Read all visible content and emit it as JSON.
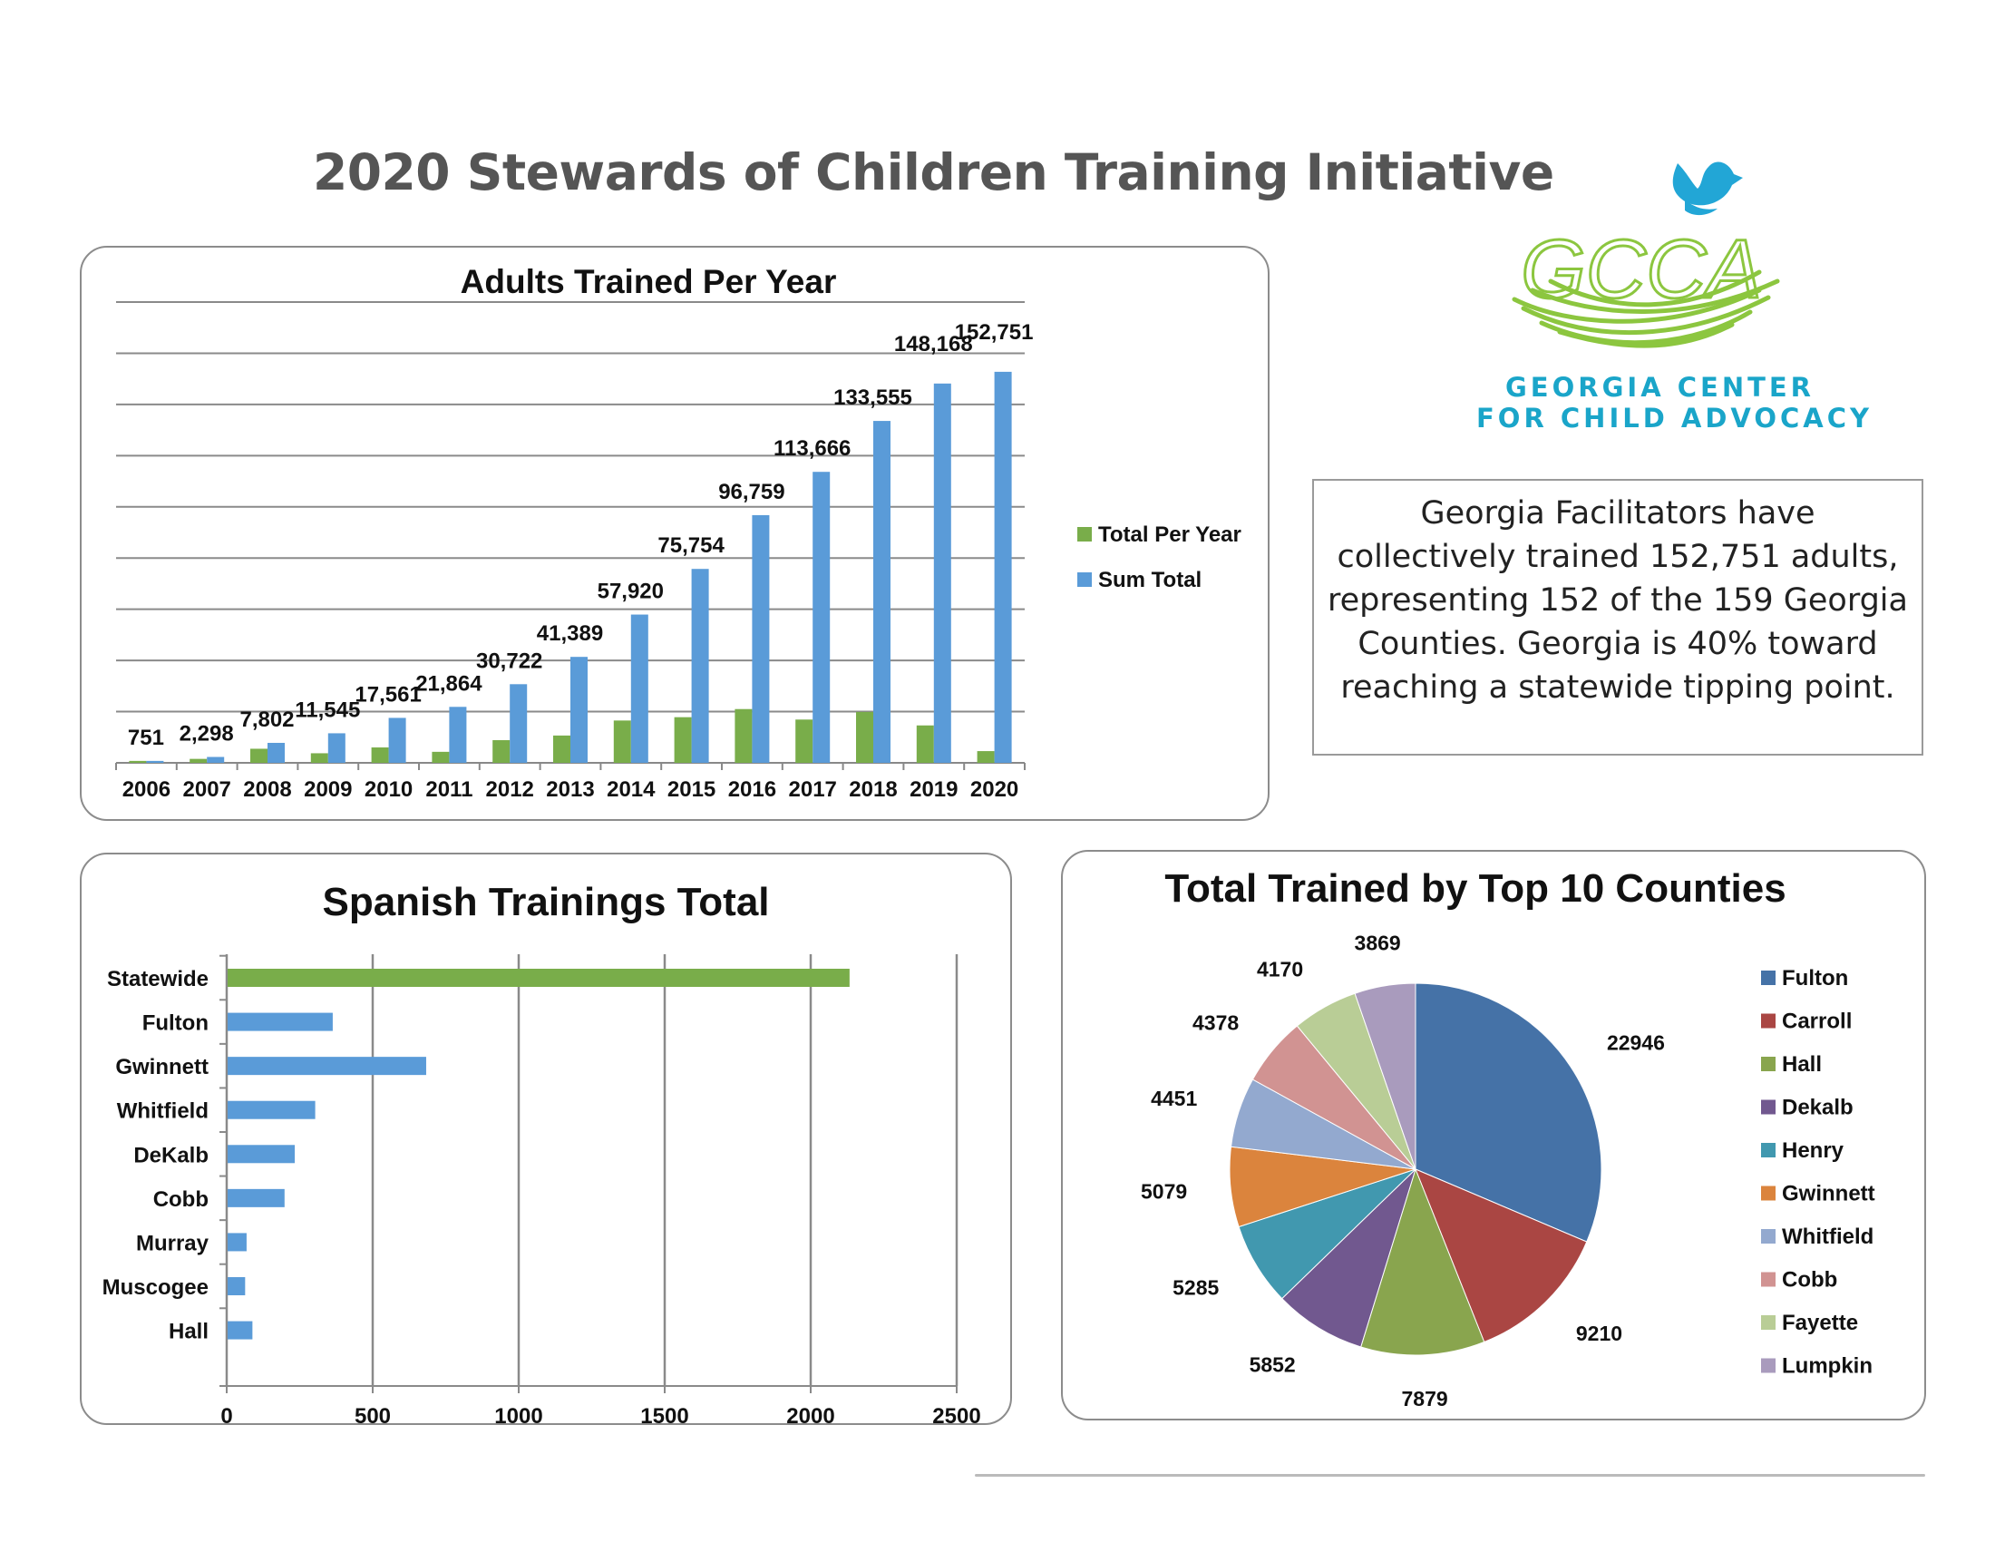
{
  "page": {
    "title": "2020 Stewards of Children Training Initiative"
  },
  "logo": {
    "mark_text": "GCCA",
    "org_line1": "GEORGIA CENTER",
    "org_line2": "FOR CHILD ADVOCACY",
    "icons": [
      "bird-icon",
      "nest-icon"
    ]
  },
  "summary": {
    "text": "Georgia Facilitators have collectively trained 152,751 adults, representing 152 of the 159 Georgia Counties. Georgia is 40% toward reaching a statewide tipping point."
  },
  "colors": {
    "green": "#79ad4a",
    "blue": "#5a9bd8",
    "title_gray": "#555555",
    "logo_teal": "#1aa5c9"
  },
  "chart_data": [
    {
      "type": "bar",
      "title": "Adults Trained Per Year",
      "categories": [
        "2006",
        "2007",
        "2008",
        "2009",
        "2010",
        "2011",
        "2012",
        "2013",
        "2014",
        "2015",
        "2016",
        "2017",
        "2018",
        "2019",
        "2020"
      ],
      "series": [
        {
          "name": "Total Per Year",
          "color": "#79ad4a",
          "values": [
            751,
            1547,
            5504,
            3743,
            6016,
            4303,
            8858,
            10667,
            16531,
            17834,
            21005,
            16907,
            19889,
            14613,
            4583
          ]
        },
        {
          "name": "Sum Total",
          "color": "#5a9bd8",
          "values": [
            751,
            2298,
            7802,
            11545,
            17561,
            21864,
            30722,
            41389,
            57920,
            75754,
            96759,
            113666,
            133555,
            148168,
            152751
          ]
        }
      ],
      "data_labels": [
        "751",
        "2,298",
        "7,802",
        "11,545",
        "17,561",
        "21,864",
        "30,722",
        "41,389",
        "57,920",
        "75,754",
        "96,759",
        "113,666",
        "133,555",
        "148,168",
        "152,751"
      ],
      "ylim": [
        0,
        180000
      ],
      "grid": true,
      "legend": "right"
    },
    {
      "type": "bar",
      "orientation": "horizontal",
      "title": "Spanish Trainings Total",
      "categories": [
        "Statewide",
        "Fulton",
        "Gwinnett",
        "Whitfield",
        "DeKalb",
        "Cobb",
        "Murray",
        "Muscogee",
        "Hall"
      ],
      "values": [
        2130,
        360,
        680,
        300,
        230,
        195,
        65,
        60,
        85
      ],
      "bar_colors": [
        "#79ad4a",
        "#5a9bd8",
        "#5a9bd8",
        "#5a9bd8",
        "#5a9bd8",
        "#5a9bd8",
        "#5a9bd8",
        "#5a9bd8",
        "#5a9bd8"
      ],
      "xlim": [
        0,
        2500
      ],
      "xticks": [
        "0",
        "500",
        "1000",
        "1500",
        "2000",
        "2500"
      ],
      "grid": true
    },
    {
      "type": "pie",
      "title": "Total Trained by Top 10 Counties",
      "labels": [
        "Fulton",
        "Carroll",
        "Hall",
        "Dekalb",
        "Henry",
        "Gwinnett",
        "Whitfield",
        "Cobb",
        "Fayette",
        "Lumpkin"
      ],
      "values": [
        22946,
        9210,
        7879,
        5852,
        5285,
        5079,
        4451,
        4378,
        4170,
        3869
      ],
      "colors": [
        "#4572a7",
        "#aa4643",
        "#89a54e",
        "#71588f",
        "#4198af",
        "#db843d",
        "#93a9cf",
        "#d19392",
        "#b9cd96",
        "#a99bbd"
      ],
      "legend": "right"
    }
  ]
}
